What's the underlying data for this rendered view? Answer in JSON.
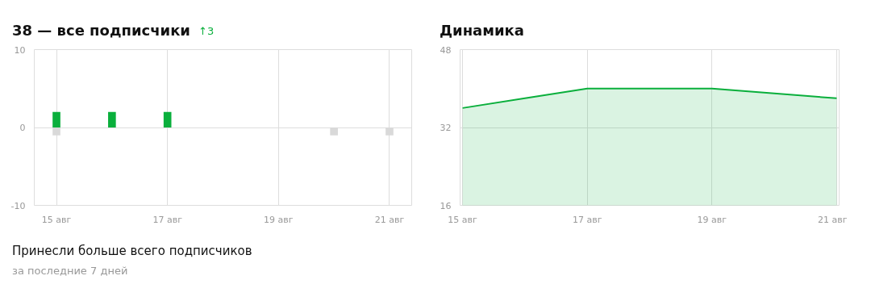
{
  "chart_data": [
    {
      "type": "bar",
      "title": "38 — все подписчики",
      "categories": [
        "15 авг",
        null,
        "17 авг",
        null,
        "19 авг",
        null,
        "21 авг"
      ],
      "series": [
        {
          "color": "#0aaf3c",
          "values": [
            2,
            2,
            2,
            0,
            0,
            0,
            0
          ]
        },
        {
          "color": "#d9d9d9",
          "values": [
            -1,
            0,
            0,
            0,
            0,
            -1,
            -1
          ]
        }
      ],
      "ylim": [
        -10,
        10
      ],
      "yticks": [
        -10,
        0,
        10
      ],
      "grid": true,
      "annotations": [
        "↑3",
        "Принесли больше всего подписчиков",
        "за последние 7 дней"
      ]
    },
    {
      "type": "area",
      "title": "Динамика",
      "categories": [
        "15 авг",
        null,
        "17 авг",
        null,
        "19 авг",
        null,
        "21 авг"
      ],
      "series": [
        {
          "color": "#0aaf3c",
          "values": [
            36,
            38,
            40,
            40,
            40,
            39,
            38
          ]
        }
      ],
      "ylim": [
        16,
        48
      ],
      "yticks": [
        16,
        32,
        48
      ],
      "grid": true
    }
  ]
}
